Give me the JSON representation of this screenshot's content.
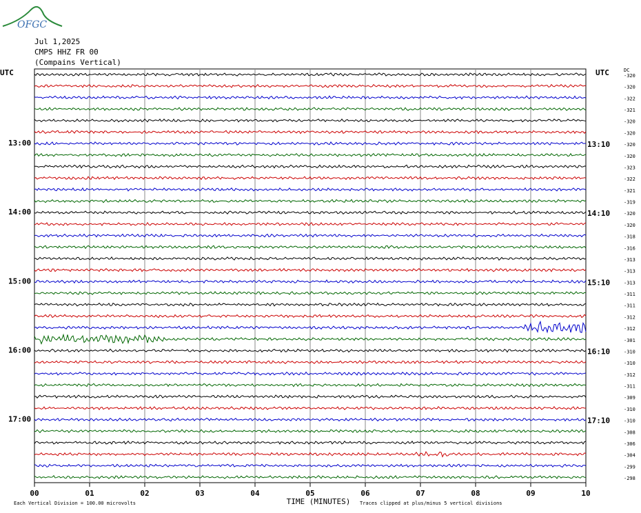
{
  "logo": "OFGC",
  "header": {
    "date": "Jul 1,2025",
    "station": "CMPS HHZ FR 00",
    "location": "(Compains Vertical)"
  },
  "left_axis_title": "UTC",
  "right_axis_title": "UTC",
  "dc_title": "DC",
  "left_time_labels": [
    "13:00",
    "14:00",
    "15:00",
    "16:00",
    "17:00"
  ],
  "right_time_labels": [
    "13:10",
    "14:10",
    "15:10",
    "16:10",
    "17:10"
  ],
  "dc_offsets": [
    -320,
    -320,
    -322,
    -321,
    -320,
    -320,
    -320,
    -320,
    -323,
    -322,
    -321,
    -319,
    -320,
    -320,
    -318,
    -316,
    -313,
    -313,
    -313,
    -311,
    -311,
    -312,
    -312,
    -301,
    -310,
    -310,
    -312,
    -311,
    -309,
    -310,
    -310,
    -308,
    -306,
    -304,
    -299,
    -298
  ],
  "x_ticks": [
    "00",
    "01",
    "02",
    "03",
    "04",
    "05",
    "06",
    "07",
    "08",
    "09",
    "10"
  ],
  "x_axis_title": "TIME (MINUTES)",
  "footer": {
    "scale_note": "Each Vertical Division =  100.00 microvolts",
    "clip_note": "Traces clipped at plus/minus 5 vertical divisions"
  }
}
